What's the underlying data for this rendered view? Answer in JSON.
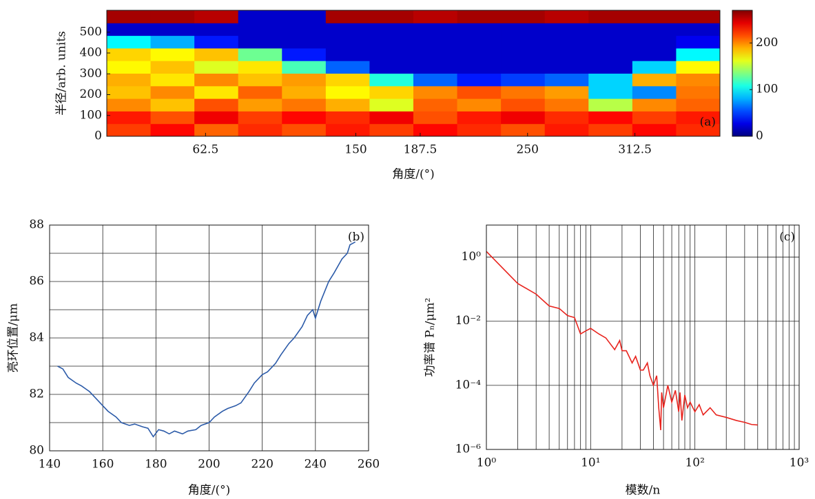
{
  "chart_data": [
    {
      "type": "heatmap",
      "panel_label": "(a)",
      "xlabel": "角度/(°)",
      "ylabel": "半径/arb. units",
      "xlim": [
        5,
        362
      ],
      "xticks": [
        62.5,
        150,
        187.5,
        250,
        312.5
      ],
      "ylim": [
        0,
        605
      ],
      "yticks": [
        0,
        100,
        200,
        300,
        400,
        500
      ],
      "zlim": [
        0,
        270
      ],
      "colorbar_ticks": [
        0,
        100,
        200
      ],
      "colormap": "jet",
      "z": [
        [
          220,
          235,
          210,
          225,
          215,
          230,
          220,
          235,
          225,
          215,
          230,
          220,
          235,
          225
        ],
        [
          230,
          215,
          240,
          220,
          235,
          225,
          240,
          215,
          230,
          240,
          225,
          235,
          220,
          230
        ],
        [
          200,
          185,
          215,
          195,
          205,
          190,
          160,
          210,
          200,
          215,
          205,
          150,
          200,
          210
        ],
        [
          185,
          200,
          175,
          210,
          190,
          170,
          180,
          200,
          215,
          205,
          195,
          90,
          70,
          205
        ],
        [
          190,
          175,
          200,
          185,
          195,
          180,
          110,
          60,
          40,
          50,
          60,
          90,
          190,
          200
        ],
        [
          170,
          185,
          160,
          175,
          120,
          60,
          20,
          20,
          20,
          20,
          20,
          20,
          90,
          170
        ],
        [
          180,
          170,
          185,
          130,
          40,
          20,
          20,
          20,
          20,
          20,
          20,
          20,
          20,
          100
        ],
        [
          100,
          80,
          40,
          20,
          20,
          20,
          20,
          20,
          20,
          20,
          20,
          20,
          20,
          30
        ],
        [
          20,
          20,
          20,
          20,
          20,
          20,
          20,
          20,
          20,
          20,
          20,
          20,
          20,
          20
        ],
        [
          260,
          260,
          255,
          20,
          20,
          260,
          260,
          255,
          260,
          260,
          255,
          260,
          260,
          260
        ]
      ]
    },
    {
      "type": "line",
      "panel_label": "(b)",
      "xlabel": "角度/(°)",
      "ylabel": "亮环位置/μm",
      "xlim": [
        140,
        260
      ],
      "xticks": [
        140,
        160,
        180,
        200,
        220,
        240,
        260
      ],
      "ylim": [
        80,
        88
      ],
      "yticks": [
        80,
        82,
        84,
        86,
        88
      ],
      "y_minor_grid": [
        81,
        83,
        85,
        87
      ],
      "grid": true,
      "x": [
        143,
        145,
        147,
        150,
        152,
        155,
        157,
        160,
        162,
        165,
        167,
        170,
        172,
        175,
        177,
        179,
        181,
        183,
        185,
        187,
        190,
        192,
        195,
        197,
        200,
        202,
        205,
        207,
        210,
        212,
        215,
        217,
        220,
        222,
        225,
        227,
        230,
        232,
        235,
        237,
        239,
        240,
        242,
        245,
        247,
        250,
        252,
        253,
        255
      ],
      "series": [
        {
          "color": "#2b5aa8",
          "values": [
            83.0,
            82.9,
            82.6,
            82.4,
            82.3,
            82.1,
            81.9,
            81.6,
            81.4,
            81.2,
            81.0,
            80.9,
            80.95,
            80.85,
            80.8,
            80.5,
            80.75,
            80.7,
            80.6,
            80.7,
            80.6,
            80.7,
            80.75,
            80.9,
            81.0,
            81.2,
            81.4,
            81.5,
            81.6,
            81.7,
            82.1,
            82.4,
            82.7,
            82.8,
            83.1,
            83.4,
            83.8,
            84.0,
            84.4,
            84.8,
            85.0,
            84.7,
            85.3,
            86.0,
            86.3,
            86.8,
            87.0,
            87.3,
            87.4
          ]
        }
      ]
    },
    {
      "type": "line",
      "panel_label": "(c)",
      "xlabel": "模数/n",
      "ylabel": "功率谱 Pₙ/μm²",
      "log_x": true,
      "log_y": true,
      "grid": true,
      "xlim": [
        1,
        1000
      ],
      "xticks": [
        {
          "value": 1,
          "label": "10⁰"
        },
        {
          "value": 10,
          "label": "10¹"
        },
        {
          "value": 100,
          "label": "10²"
        },
        {
          "value": 1000,
          "label": "10³"
        }
      ],
      "x_minor_grid": [
        2,
        3,
        4,
        5,
        6,
        7,
        8,
        9,
        20,
        30,
        40,
        50,
        60,
        70,
        80,
        90,
        200,
        300,
        400,
        500,
        600,
        700,
        800,
        900
      ],
      "ylim": [
        1e-06,
        10
      ],
      "yticks": [
        {
          "value": 1e-06,
          "label": "10⁻⁶"
        },
        {
          "value": 0.0001,
          "label": "10⁻⁴"
        },
        {
          "value": 0.01,
          "label": "10⁻²"
        },
        {
          "value": 1,
          "label": "10⁰"
        }
      ],
      "x": [
        1,
        2,
        3,
        4,
        5,
        6,
        7,
        8,
        9,
        10,
        12,
        14,
        17,
        19,
        20,
        22,
        25,
        27,
        30,
        32,
        35,
        37,
        40,
        43,
        45,
        47,
        48,
        50,
        55,
        60,
        65,
        70,
        72,
        75,
        80,
        85,
        90,
        100,
        110,
        120,
        140,
        160,
        200,
        250,
        300,
        350,
        400
      ],
      "series": [
        {
          "color": "#e8231d",
          "values": [
            1.5,
            0.15,
            0.07,
            0.03,
            0.025,
            0.015,
            0.013,
            0.004,
            0.005,
            0.006,
            0.004,
            0.003,
            0.0013,
            0.0025,
            0.0012,
            0.0012,
            0.0005,
            0.0008,
            0.0003,
            0.0003,
            0.0005,
            0.0002,
            0.0001,
            0.0002,
            2e-05,
            4e-06,
            6e-05,
            2e-05,
            0.0001,
            3e-05,
            7e-05,
            1.5e-05,
            6e-05,
            8e-06,
            5e-05,
            2e-05,
            3e-05,
            1.5e-05,
            2.5e-05,
            1.2e-05,
            2e-05,
            1.2e-05,
            1e-05,
            8e-06,
            7e-06,
            6e-06,
            5.8e-06
          ]
        }
      ]
    }
  ]
}
